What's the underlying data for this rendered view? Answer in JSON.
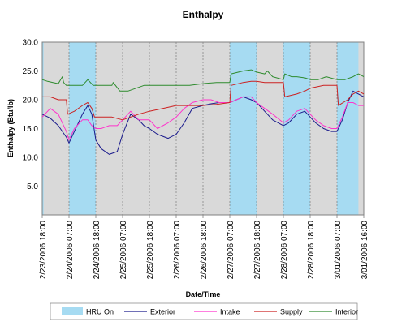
{
  "chart_data": {
    "type": "line",
    "title": "Enthalpy",
    "xlabel": "Date/Time",
    "ylabel": "Enthalpy (Btu/lb)",
    "ylim": [
      0,
      30
    ],
    "yticks": [
      5.0,
      10.0,
      15.0,
      20.0,
      25.0,
      30.0
    ],
    "ytick_labels": [
      "5.0",
      "10.0",
      "15.0",
      "20.0",
      "25.0",
      "30.0"
    ],
    "xlim": [
      0,
      12
    ],
    "x_ticks": [
      {
        "x": 0,
        "label": "2/23/2006 18:00"
      },
      {
        "x": 1,
        "label": "2/24/2006 07:00"
      },
      {
        "x": 2,
        "label": "2/24/2006 18:00"
      },
      {
        "x": 3,
        "label": "2/25/2006 07:00"
      },
      {
        "x": 4,
        "label": "2/25/2006 18:00"
      },
      {
        "x": 5,
        "label": "2/26/2006 07:00"
      },
      {
        "x": 6,
        "label": "2/26/2006 18:00"
      },
      {
        "x": 7,
        "label": "2/27/2006 07:00"
      },
      {
        "x": 8,
        "label": "2/27/2006 18:00"
      },
      {
        "x": 9,
        "label": "2/28/2006 07:00"
      },
      {
        "x": 10,
        "label": "2/28/2006 18:00"
      },
      {
        "x": 11,
        "label": "3/01/2006 07:00"
      },
      {
        "x": 12,
        "label": "3/01/2006 16:00"
      }
    ],
    "grid": "vertical",
    "legend_position": "bottom",
    "hru_on": {
      "name": "HRU On",
      "color": "#a6dbf2",
      "intervals": [
        [
          0.0,
          0.05
        ],
        [
          1.0,
          2.0
        ],
        [
          7.0,
          8.0
        ],
        [
          9.0,
          10.0
        ],
        [
          11.0,
          11.8
        ]
      ]
    },
    "series": [
      {
        "name": "Exterior",
        "color": "#1a1a8c",
        "x": [
          0,
          0.3,
          0.6,
          0.9,
          1.0,
          1.2,
          1.5,
          1.7,
          1.85,
          2.0,
          2.2,
          2.5,
          2.8,
          3.0,
          3.3,
          3.6,
          3.8,
          4.0,
          4.3,
          4.7,
          5.0,
          5.3,
          5.6,
          6.0,
          6.3,
          6.6,
          7.0,
          7.5,
          7.8,
          8.0,
          8.3,
          8.6,
          9.0,
          9.2,
          9.5,
          9.8,
          10.0,
          10.2,
          10.5,
          10.8,
          11.0,
          11.2,
          11.4,
          11.6,
          11.8,
          12.0
        ],
        "y": [
          17.5,
          16.8,
          15.5,
          13.5,
          12.5,
          14.5,
          17.5,
          19.0,
          17.5,
          13.0,
          11.5,
          10.5,
          11.0,
          14.0,
          17.5,
          16.5,
          15.5,
          15.0,
          14.0,
          13.3,
          14.0,
          16.0,
          18.5,
          19.0,
          19.3,
          19.5,
          19.5,
          20.5,
          20.0,
          19.5,
          18.0,
          16.5,
          15.5,
          16.0,
          17.5,
          18.0,
          17.0,
          16.0,
          15.0,
          14.5,
          14.5,
          16.5,
          19.5,
          21.5,
          21.0,
          20.5
        ]
      },
      {
        "name": "Intake",
        "color": "#ff33cc",
        "x": [
          0,
          0.3,
          0.6,
          0.9,
          1.0,
          1.2,
          1.5,
          1.7,
          1.85,
          2.0,
          2.2,
          2.5,
          2.8,
          3.0,
          3.3,
          3.6,
          3.8,
          4.0,
          4.3,
          4.7,
          5.0,
          5.3,
          5.6,
          6.0,
          6.3,
          6.6,
          7.0,
          7.5,
          7.8,
          8.0,
          8.3,
          8.6,
          9.0,
          9.2,
          9.5,
          9.8,
          10.0,
          10.2,
          10.5,
          10.8,
          11.0,
          11.2,
          11.4,
          11.6,
          11.8,
          12.0
        ],
        "y": [
          17.0,
          18.5,
          17.5,
          14.5,
          13.0,
          15.0,
          16.5,
          16.5,
          15.5,
          15.0,
          15.0,
          15.5,
          15.5,
          16.5,
          18.0,
          16.5,
          16.5,
          16.5,
          15.0,
          16.0,
          17.0,
          18.5,
          19.5,
          20.0,
          20.0,
          19.5,
          19.5,
          20.5,
          20.5,
          19.5,
          18.5,
          17.5,
          16.0,
          16.5,
          18.0,
          18.5,
          17.5,
          16.5,
          15.5,
          15.0,
          15.0,
          17.0,
          19.5,
          19.5,
          19.0,
          19.0
        ]
      },
      {
        "name": "Supply",
        "color": "#cc2222",
        "x": [
          0,
          0.3,
          0.6,
          0.9,
          0.95,
          1.2,
          1.5,
          1.7,
          1.85,
          1.95,
          2.5,
          2.6,
          3.0,
          3.3,
          3.6,
          4.0,
          4.5,
          5.0,
          5.5,
          6.0,
          6.5,
          7.0,
          7.05,
          7.5,
          7.8,
          8.0,
          8.3,
          8.6,
          9.0,
          9.05,
          9.5,
          9.8,
          10.0,
          10.5,
          11.0,
          11.05,
          11.4,
          11.6,
          11.8,
          12.0
        ],
        "y": [
          20.5,
          20.5,
          20.0,
          20.0,
          17.5,
          18.0,
          19.0,
          19.5,
          18.5,
          17.0,
          17.0,
          17.0,
          16.5,
          17.0,
          17.5,
          18.0,
          18.5,
          19.0,
          19.0,
          19.0,
          19.2,
          19.5,
          22.5,
          23.0,
          23.2,
          23.2,
          23.0,
          23.0,
          23.0,
          20.5,
          21.0,
          21.5,
          22.0,
          22.5,
          22.5,
          19.0,
          20.0,
          21.0,
          21.5,
          21.0
        ]
      },
      {
        "name": "Interior",
        "color": "#2e8b2e",
        "x": [
          0,
          0.2,
          0.4,
          0.6,
          0.75,
          0.8,
          0.9,
          1.0,
          1.2,
          1.5,
          1.7,
          1.9,
          2.0,
          2.4,
          2.6,
          2.65,
          2.9,
          3.2,
          3.5,
          3.8,
          4.2,
          4.6,
          5.0,
          5.5,
          6.0,
          6.5,
          7.0,
          7.05,
          7.5,
          7.8,
          8.0,
          8.3,
          8.4,
          8.6,
          9.0,
          9.05,
          9.3,
          9.5,
          9.8,
          10.0,
          10.3,
          10.6,
          11.0,
          11.3,
          11.6,
          11.8,
          12.0
        ],
        "y": [
          23.5,
          23.2,
          23.0,
          22.8,
          24.0,
          23.0,
          22.5,
          22.5,
          22.5,
          22.5,
          23.5,
          22.5,
          22.5,
          22.5,
          22.5,
          23.0,
          21.5,
          21.5,
          22.0,
          22.5,
          22.5,
          22.5,
          22.5,
          22.5,
          22.8,
          23.0,
          23.0,
          24.5,
          25.0,
          25.2,
          24.8,
          24.5,
          25.0,
          24.0,
          23.5,
          24.5,
          24.0,
          24.0,
          23.8,
          23.5,
          23.5,
          24.0,
          23.5,
          23.5,
          24.0,
          24.5,
          24.0
        ]
      }
    ]
  }
}
